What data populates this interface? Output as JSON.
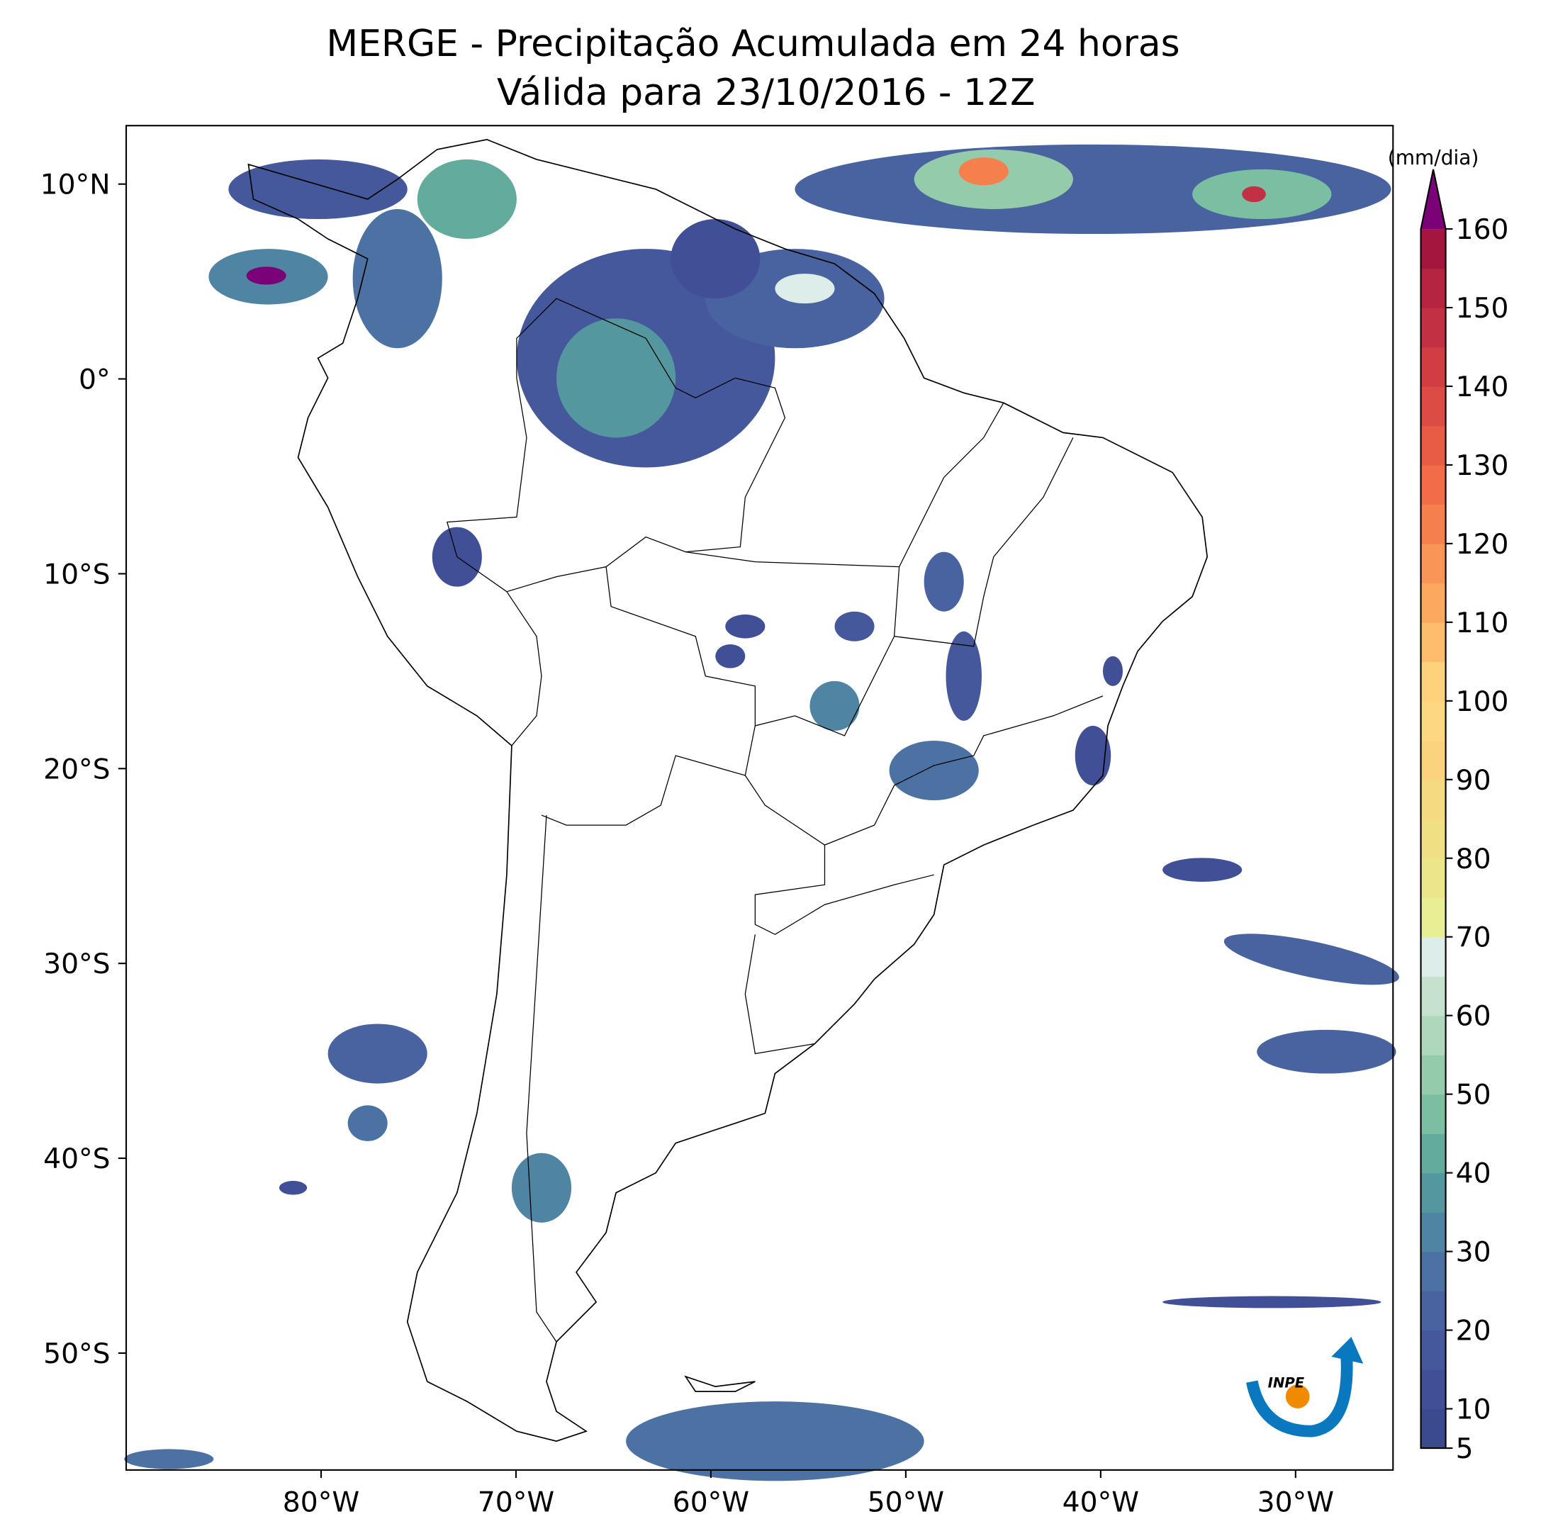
{
  "chart_data": {
    "type": "map",
    "title": "MERGE - Precipitação Acumulada em 24 horas",
    "subtitle": "Válida para 23/10/2016 - 12Z",
    "xlim": [
      -90,
      -25
    ],
    "ylim": [
      -56,
      13
    ],
    "xticks": [
      {
        "value": -80,
        "label": "80°W"
      },
      {
        "value": -70,
        "label": "70°W"
      },
      {
        "value": -60,
        "label": "60°W"
      },
      {
        "value": -50,
        "label": "50°W"
      },
      {
        "value": -40,
        "label": "40°W"
      },
      {
        "value": -30,
        "label": "30°W"
      }
    ],
    "yticks": [
      {
        "value": 10,
        "label": "10°N"
      },
      0,
      {
        "value": 0,
        "label": "0°"
      },
      {
        "value": -10,
        "label": "10°S"
      },
      {
        "value": -20,
        "label": "20°S"
      },
      {
        "value": -30,
        "label": "30°S"
      },
      {
        "value": -40,
        "label": "40°S"
      },
      {
        "value": -50,
        "label": "50°S"
      }
    ],
    "colorbar": {
      "label": "(mm/dia)",
      "lim": [
        5,
        160
      ],
      "ticks": [
        5,
        10,
        20,
        30,
        40,
        50,
        60,
        70,
        80,
        90,
        100,
        110,
        120,
        130,
        140,
        150,
        160
      ],
      "colors": [
        "#3b4a8c",
        "#414f96",
        "#45589c",
        "#4863a0",
        "#4b72a3",
        "#4f84a2",
        "#55979f",
        "#63ab9c",
        "#7bbfa2",
        "#94cbab",
        "#afd7bb",
        "#c6e2cf",
        "#dcedea",
        "#e7ee93",
        "#ebe68a",
        "#f1e083",
        "#f6da80",
        "#fbd37c",
        "#fdd880",
        "#fdd27a",
        "#fdbd6c",
        "#fca85f",
        "#f99556",
        "#f6804d",
        "#f26d47",
        "#e85c45",
        "#dd4c44",
        "#d03e44",
        "#c23043",
        "#b52441",
        "#a5163f"
      ],
      "extend_color": "#7a0177"
    }
  },
  "logo": {
    "text": "INPE"
  }
}
